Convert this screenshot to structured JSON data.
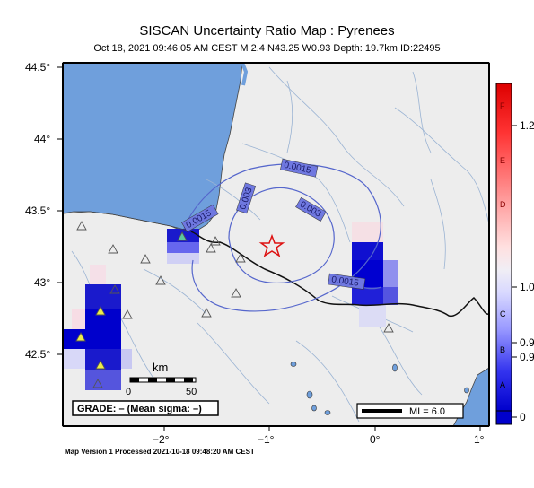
{
  "header": {
    "title": "SISCAN Uncertainty Ratio Map : Pyrenees",
    "subtitle": "Oct 18, 2021 09:46:05 AM CEST   M 2.4   N43.25 W0.93   Depth: 19.7km   ID:22495"
  },
  "axes": {
    "lat_ticks": [
      "44.5°",
      "44°",
      "43.5°",
      "43°",
      "42.5°"
    ],
    "lon_ticks": [
      "−2°",
      "−1°",
      "0°",
      "1°"
    ]
  },
  "contours": [
    "0.0015",
    "0.0015",
    "0.003",
    "0.003",
    "0.0015"
  ],
  "scale_bar": {
    "unit": "km",
    "start": "0",
    "end": "50"
  },
  "grade_box": "GRADE: – (Mean sigma: –)",
  "mi_box": "MI = 6.0",
  "colorbar": {
    "letters": [
      "F",
      "E",
      "D",
      "C",
      "B",
      "A"
    ],
    "values": [
      "1.2",
      "1.0",
      "0.9",
      "0.9",
      "0"
    ]
  },
  "footer": "Map Version 1 Processed 2021-10-18 09:48:20 AM CEST"
}
